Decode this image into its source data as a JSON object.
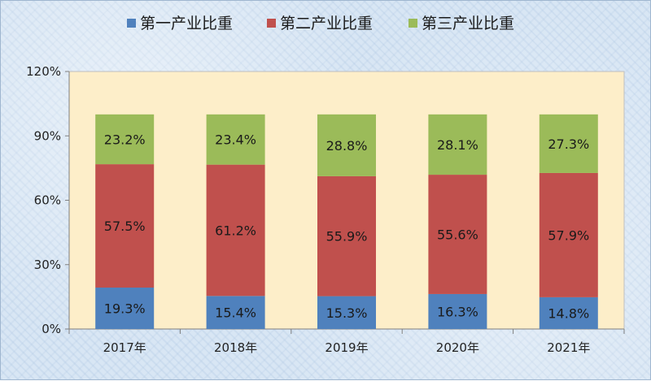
{
  "chart_data": {
    "type": "bar",
    "stacked": true,
    "categories": [
      "2017年",
      "2018年",
      "2019年",
      "2020年",
      "2021年"
    ],
    "series": [
      {
        "name": "第一产业比重",
        "color": "#4f81bd",
        "values": [
          19.3,
          15.4,
          15.3,
          16.3,
          14.8
        ],
        "labels": [
          "19.3%",
          "15.4%",
          "15.3%",
          "16.3%",
          "14.8%"
        ]
      },
      {
        "name": "第二产业比重",
        "color": "#c0504d",
        "values": [
          57.5,
          61.2,
          55.9,
          55.6,
          57.9
        ],
        "labels": [
          "57.5%",
          "61.2%",
          "55.9%",
          "55.6%",
          "57.9%"
        ]
      },
      {
        "name": "第三产业比重",
        "color": "#9bbb59",
        "values": [
          23.2,
          23.4,
          28.8,
          28.1,
          27.3
        ],
        "labels": [
          "23.2%",
          "23.4%",
          "28.8%",
          "28.1%",
          "27.3%"
        ]
      }
    ],
    "yticks": [
      "0%",
      "30%",
      "60%",
      "90%",
      "120%"
    ],
    "ylim": [
      0,
      120
    ],
    "legend_position": "top",
    "plot_background": "#fdeec9",
    "grid": false
  }
}
